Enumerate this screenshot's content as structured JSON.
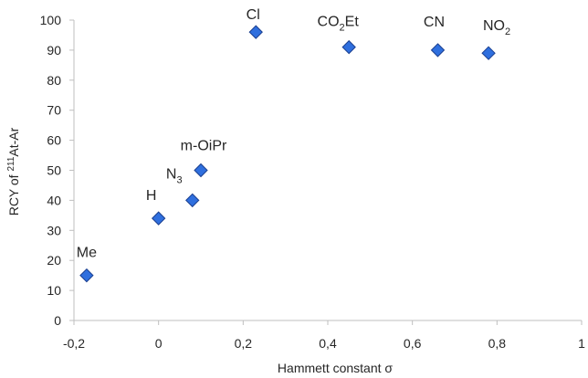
{
  "chart_data": {
    "type": "scatter",
    "xlabel_text": "Hammett constant ",
    "xlabel_symbol": "σ",
    "ylabel_prefix": "RCY of ",
    "ylabel_sup": "211",
    "ylabel_suffix": "At-Ar",
    "xlim": [
      -0.2,
      1
    ],
    "ylim": [
      0,
      100
    ],
    "x_ticks": [
      "-0,2",
      "0",
      "0,2",
      "0,4",
      "0,6",
      "0,8",
      "1"
    ],
    "y_ticks": [
      "0",
      "10",
      "20",
      "30",
      "40",
      "50",
      "60",
      "70",
      "80",
      "90",
      "100"
    ],
    "grid": false,
    "marker_color": "#2f6fde",
    "marker_stroke": "#1b3f8f",
    "points": [
      {
        "label": "Me",
        "x": -0.17,
        "y": 15
      },
      {
        "label": "H",
        "x": 0.0,
        "y": 34
      },
      {
        "label": "N",
        "label_sub": "3",
        "x": 0.08,
        "y": 40
      },
      {
        "label": "m-OiPr",
        "x": 0.1,
        "y": 50
      },
      {
        "label": "Cl",
        "x": 0.23,
        "y": 96
      },
      {
        "label": "CO",
        "label_sub": "2",
        "label_suffix": "Et",
        "x": 0.45,
        "y": 91
      },
      {
        "label": "CN",
        "x": 0.66,
        "y": 90
      },
      {
        "label": "NO",
        "label_sub": "2",
        "x": 0.78,
        "y": 89
      }
    ]
  }
}
